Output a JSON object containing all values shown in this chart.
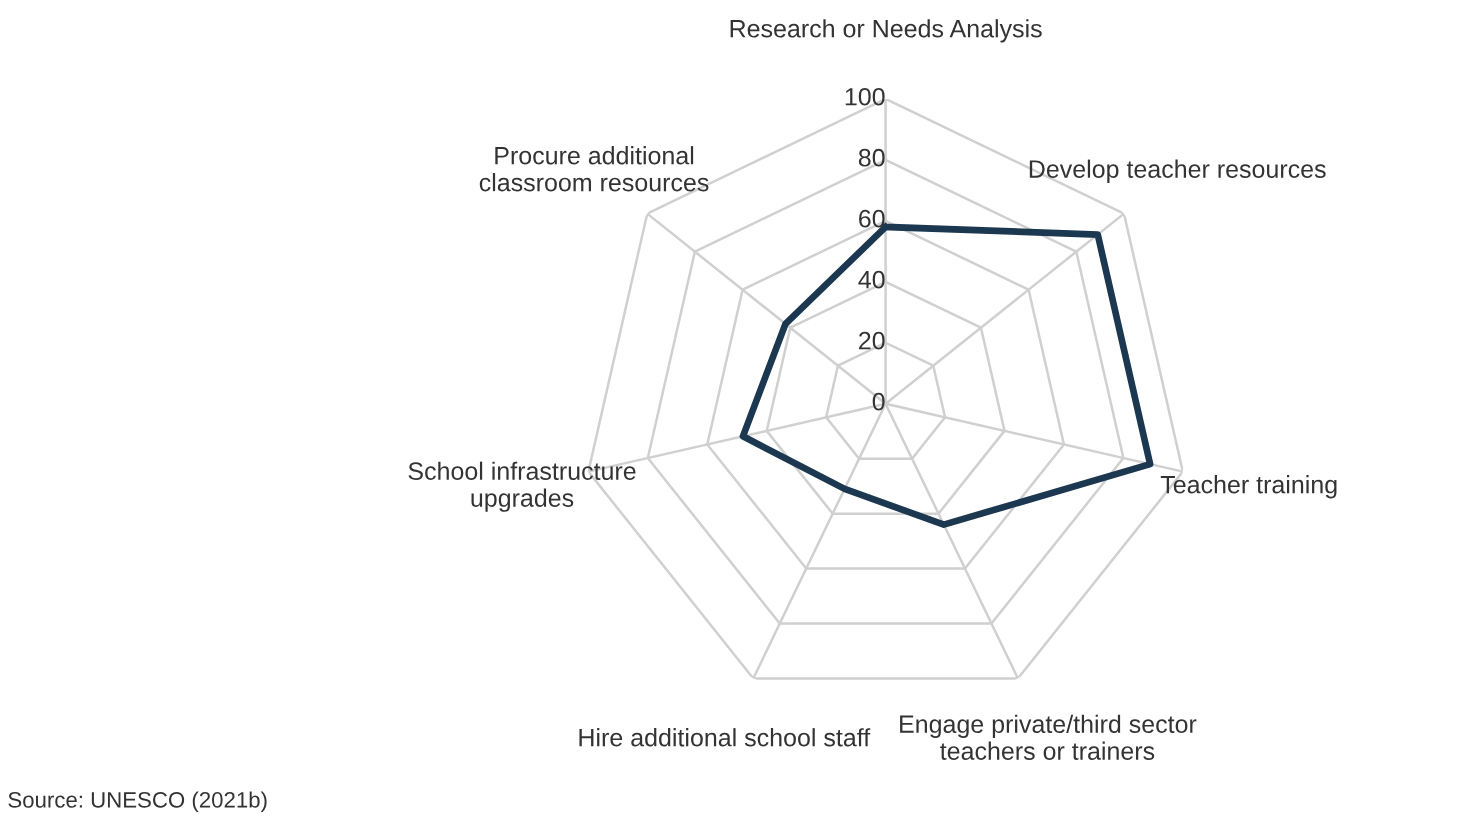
{
  "chart_data": {
    "type": "radar",
    "categories": [
      "Research or Needs Analysis",
      "Develop teacher resources",
      "Teacher training",
      "Engage private/third sector\nteachers or trainers",
      "Hire additional school staff",
      "School infrastructure\nupgrades",
      "Procure additional\nclassroom resources"
    ],
    "series": [
      {
        "color": "#1c3750",
        "values": [
          58,
          89,
          89,
          44,
          31,
          48,
          42
        ]
      }
    ],
    "ylim": [
      0,
      100
    ],
    "yticks": [
      0,
      20,
      40,
      60,
      80,
      100
    ],
    "grid": true,
    "annotations": [
      "Source: UNESCO (2021b)"
    ]
  }
}
